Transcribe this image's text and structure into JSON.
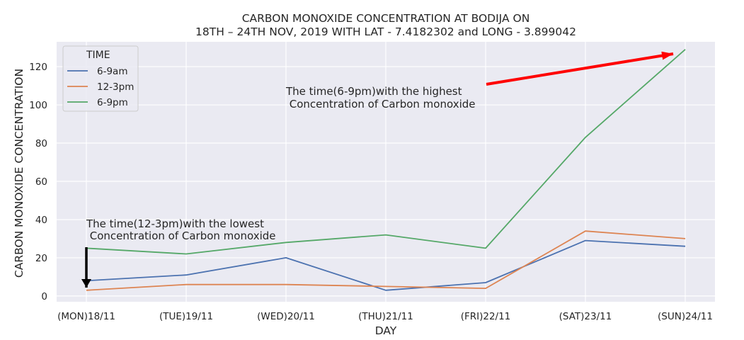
{
  "chart_data": {
    "type": "line",
    "title_lines": [
      "CARBON MONOXIDE CONCENTRATION AT BODIJA ON",
      "18TH – 24TH NOV, 2019 WITH LAT - 7.4182302 and LONG - 3.899042"
    ],
    "xlabel": "DAY",
    "ylabel": "CARBON MONOXIDE CONCENTRATION",
    "categories": [
      "(MON)18/11",
      "(TUE)19/11",
      "(WED)20/11",
      "(THU)21/11",
      "(FRI)22/11",
      "(SAT)23/11",
      "(SUN)24/11"
    ],
    "ylim": [
      -3,
      133
    ],
    "yticks": [
      0,
      20,
      40,
      60,
      80,
      100,
      120
    ],
    "grid": true,
    "legend": {
      "title": "TIME",
      "placement": "top-left"
    },
    "series": [
      {
        "name": "6-9am",
        "color": "#4c72b0",
        "values": [
          8,
          11,
          20,
          3,
          7,
          29,
          26
        ]
      },
      {
        "name": "12-3pm",
        "color": "#dd8452",
        "values": [
          3,
          6,
          6,
          5,
          4,
          34,
          30
        ]
      },
      {
        "name": "6-9pm",
        "color": "#55a868",
        "values": [
          25,
          22,
          28,
          32,
          25,
          83,
          129
        ]
      }
    ],
    "annotations": [
      {
        "lines": [
          "The time(6-9pm)with the highest",
          " Concentration of Carbon monoxide"
        ],
        "arrow_color": "#ff0000",
        "points_to": {
          "category": "(SUN)24/11",
          "series": "6-9pm"
        }
      },
      {
        "lines": [
          "The time(12-3pm)with the lowest",
          " Concentration of Carbon monoxide"
        ],
        "arrow_color": "#000000",
        "points_to": {
          "category": "(MON)18/11",
          "series": "12-3pm"
        }
      }
    ]
  }
}
